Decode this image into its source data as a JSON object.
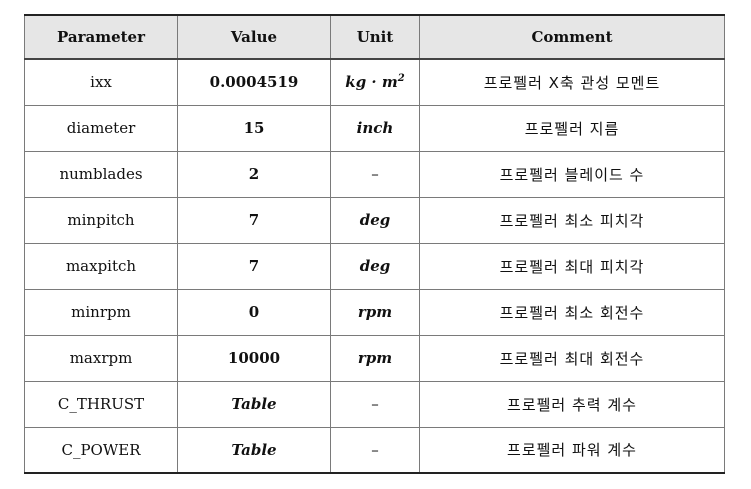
{
  "table": {
    "headers": [
      "Parameter",
      "Value",
      "Unit",
      "Comment"
    ],
    "rows": [
      {
        "parameter": "ixx",
        "value": "0.0004519",
        "unit": "kg · m",
        "unit_sup": "2",
        "comment": "프로펠러 X축 관성 모멘트"
      },
      {
        "parameter": "diameter",
        "value": "15",
        "unit": "inch",
        "comment": "프로펠러 지름"
      },
      {
        "parameter": "numblades",
        "value": "2",
        "unit": "–",
        "comment": "프로펠러 블레이드 수"
      },
      {
        "parameter": "minpitch",
        "value": "7",
        "unit": "deg",
        "comment": "프로펠러 최소 피치각"
      },
      {
        "parameter": "maxpitch",
        "value": "7",
        "unit": "deg",
        "comment": "프로펠러 최대 피치각"
      },
      {
        "parameter": "minrpm",
        "value": "0",
        "unit": "rpm",
        "comment": "프로펠러 최소 회전수"
      },
      {
        "parameter": "maxrpm",
        "value": "10000",
        "unit": "rpm",
        "comment": "프로펠러 최대 회전수"
      },
      {
        "parameter": "C_THRUST",
        "value": "Table",
        "unit": "–",
        "comment": "프로펠러 추력 계수"
      },
      {
        "parameter": "C_POWER",
        "value": "Table",
        "unit": "–",
        "comment": "프로펠러 파워 계수"
      }
    ]
  }
}
